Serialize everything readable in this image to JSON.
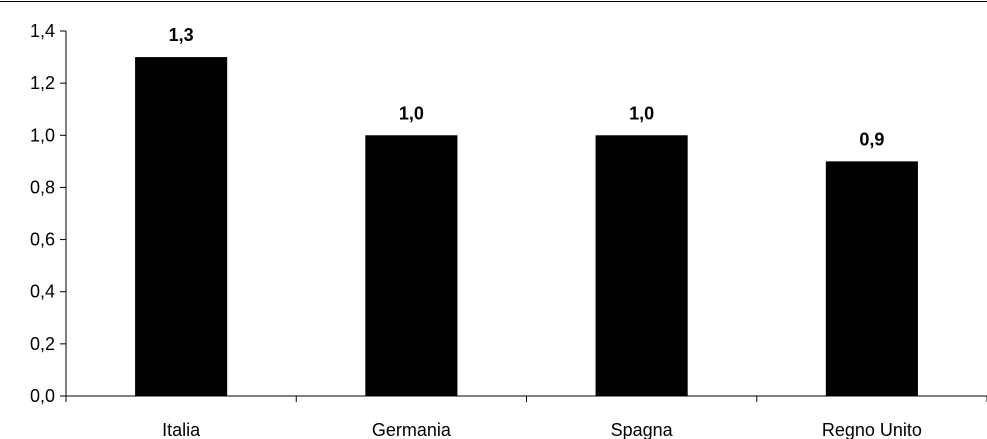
{
  "chart_data": {
    "type": "bar",
    "categories": [
      "Italia",
      "Germania",
      "Spagna",
      "Regno Unito"
    ],
    "values": [
      1.3,
      1.0,
      1.0,
      0.9
    ],
    "value_labels": [
      "1,3",
      "1,0",
      "1,0",
      "0,9"
    ],
    "title": "",
    "xlabel": "",
    "ylabel": "",
    "ylim": [
      0,
      1.4
    ],
    "yticks": [
      0,
      0.2,
      0.4,
      0.6,
      0.8,
      1.0,
      1.2,
      1.4
    ],
    "ytick_labels": [
      "0,0",
      "0,2",
      "0,4",
      "0,6",
      "0,8",
      "1,0",
      "1,2",
      "1,4"
    ],
    "grid": false,
    "legend": "none",
    "bar_color": "#000000",
    "axis_color": "#000000"
  }
}
